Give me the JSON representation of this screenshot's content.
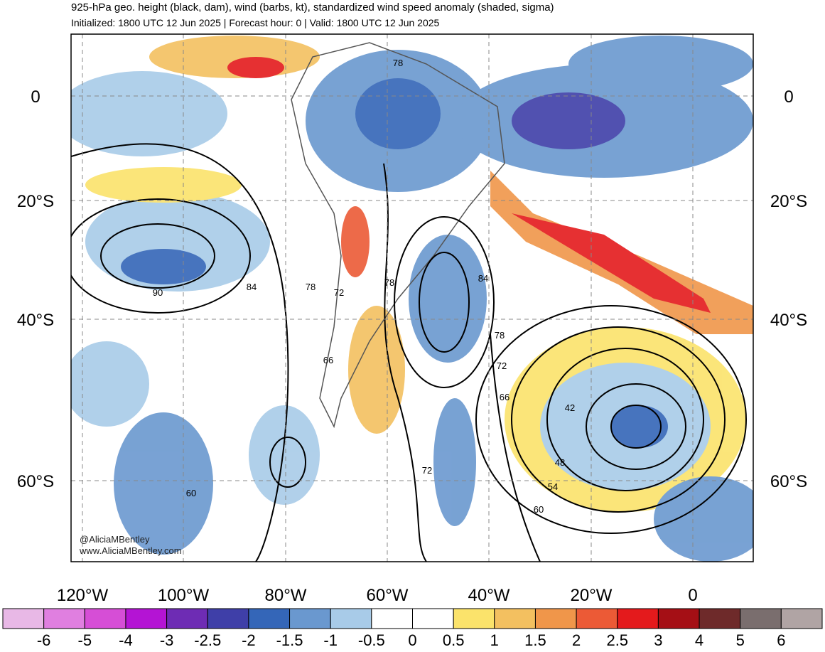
{
  "header": {
    "title": "925-hPa geo. height (black, dam), wind (barbs, kt), standardized wind speed anomaly (shaded, sigma)",
    "subtitle": "Initialized: 1800 UTC 12 Jun 2025 | Forecast hour: 0 | Valid: 1800 UTC 12 Jun 2025"
  },
  "map": {
    "lat_labels": [
      "0",
      "20°S",
      "40°S",
      "60°S"
    ],
    "lon_labels": [
      "120°W",
      "100°W",
      "80°W",
      "60°W",
      "40°W",
      "20°W",
      "0"
    ],
    "contour_labels": [
      "78",
      "90",
      "84",
      "78",
      "72",
      "78",
      "84",
      "78",
      "72",
      "66",
      "42",
      "48",
      "54",
      "60",
      "72",
      "60",
      "66"
    ]
  },
  "credits": [
    "@AliciaMBentley",
    "www.AliciaMBentley.com"
  ],
  "colorbar": {
    "colors": [
      "#e8b8e6",
      "#e07fe0",
      "#d64ed6",
      "#b414d4",
      "#6e2cb4",
      "#3f3fa8",
      "#3466b8",
      "#6a98cf",
      "#a8cbe8",
      "#ffffff",
      "#ffffff",
      "#fbe36b",
      "#f3c060",
      "#f0964a",
      "#ec5a36",
      "#e41a1c",
      "#a50f15",
      "#6e2a2a",
      "#7a6e6e",
      "#b0a4a4"
    ],
    "labels": [
      "-6",
      "-5",
      "-4",
      "-3",
      "-2.5",
      "-2",
      "-1.5",
      "-1",
      "-0.5",
      "0",
      "0.5",
      "1",
      "1.5",
      "2",
      "2.5",
      "3",
      "4",
      "5",
      "6"
    ]
  }
}
